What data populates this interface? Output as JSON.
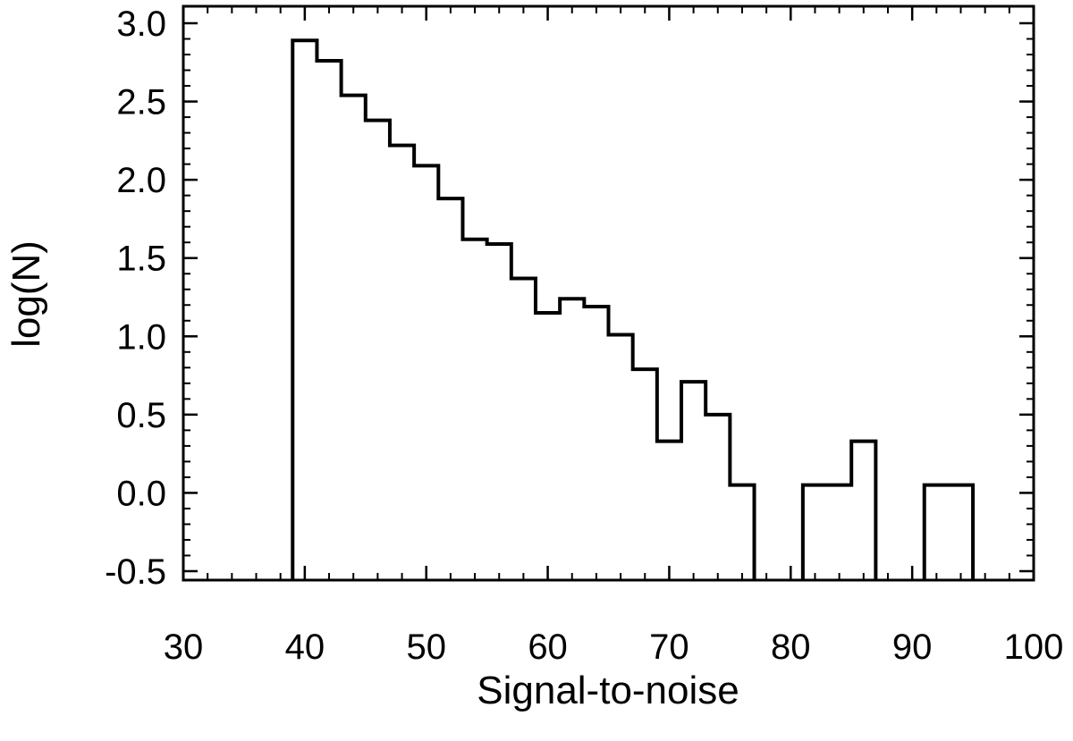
{
  "chart_data": {
    "type": "bar",
    "style": "step-histogram",
    "title": "",
    "xlabel": "Signal-to-noise",
    "ylabel": "log(N)",
    "xlim": [
      30,
      100
    ],
    "ylim": [
      -0.5,
      3.0
    ],
    "x_ticks": [
      30,
      40,
      50,
      60,
      70,
      80,
      90,
      100
    ],
    "y_ticks": [
      -0.5,
      0.0,
      0.5,
      1.0,
      1.5,
      2.0,
      2.5,
      3.0
    ],
    "x_tick_labels": [
      "30",
      "40",
      "50",
      "60",
      "70",
      "80",
      "90",
      "100"
    ],
    "y_tick_labels": [
      "-0.5",
      "0.0",
      "0.5",
      "1.0",
      "1.5",
      "2.0",
      "2.5",
      "3.0"
    ],
    "x_minor_step": 2,
    "y_minor_step": 0.1,
    "bin_width": 2,
    "bin_starts": [
      39,
      41,
      43,
      45,
      47,
      49,
      51,
      53,
      55,
      57,
      59,
      61,
      63,
      65,
      67,
      69,
      71,
      73,
      75,
      77,
      79,
      81,
      83,
      85,
      87,
      89,
      91,
      93
    ],
    "values": [
      2.89,
      2.76,
      2.54,
      2.38,
      2.22,
      2.09,
      1.88,
      1.62,
      1.59,
      1.37,
      1.15,
      1.24,
      1.19,
      1.01,
      0.79,
      0.33,
      0.71,
      0.5,
      0.05,
      null,
      null,
      0.05,
      0.05,
      0.33,
      null,
      null,
      0.05,
      0.05
    ],
    "grid": false,
    "legend": "none",
    "line_color": "#000000",
    "background": "#ffffff"
  }
}
